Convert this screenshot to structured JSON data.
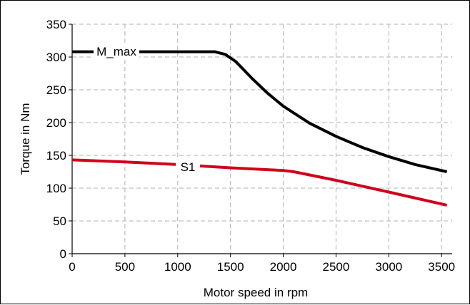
{
  "chart_data": {
    "type": "line",
    "title": "",
    "xlabel": "Motor speed in rpm",
    "ylabel": "Torque in Nm",
    "xlim": [
      0,
      3600
    ],
    "ylim": [
      0,
      350
    ],
    "xticks": [
      0,
      500,
      1000,
      1500,
      2000,
      2500,
      3000,
      3500
    ],
    "yticks": [
      0,
      50,
      100,
      150,
      200,
      250,
      300,
      350
    ],
    "grid": true,
    "legend": "inline labels on lines",
    "series": [
      {
        "name": "M_max",
        "color": "#000000",
        "x": [
          0,
          1350,
          1450,
          1550,
          1700,
          1850,
          2000,
          2250,
          2500,
          2750,
          3000,
          3250,
          3550
        ],
        "y": [
          308,
          308,
          304,
          293,
          268,
          245,
          225,
          199,
          179,
          162,
          148,
          136,
          125
        ]
      },
      {
        "name": "S1",
        "color": "#d0021b",
        "x": [
          0,
          500,
          1000,
          1500,
          2000,
          2100,
          2500,
          3000,
          3550
        ],
        "y": [
          143,
          140,
          136,
          131,
          127,
          125,
          112,
          94,
          74
        ]
      }
    ]
  }
}
